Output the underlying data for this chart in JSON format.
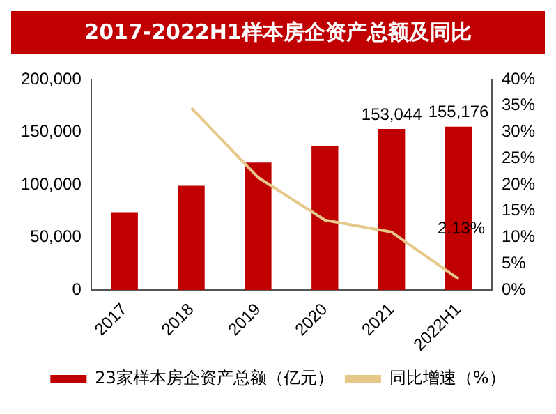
{
  "chart_data": {
    "type": "bar",
    "title": "2017-2022H1样本房企资产总额及同比",
    "categories": [
      "2017",
      "2018",
      "2019",
      "2020",
      "2021",
      "2022H1"
    ],
    "series": [
      {
        "name": "23家样本房企资产总额（亿元）",
        "color": "#c00000",
        "values": [
          74000,
          99000,
          121000,
          137000,
          153044,
          155176
        ],
        "value_labels": [
          null,
          null,
          null,
          null,
          "153,044",
          "155,176"
        ]
      },
      {
        "name": "同比增速（%）",
        "type": "line",
        "axis": "y2",
        "color": "#e6c98a",
        "values": [
          null,
          34.6,
          21.4,
          13.3,
          11.0,
          2.13
        ],
        "value_labels": [
          null,
          null,
          null,
          null,
          null,
          "2.13%"
        ]
      }
    ],
    "ylim": [
      0,
      200000
    ],
    "yticks": [
      {
        "value": 0,
        "label": "0"
      },
      {
        "value": 50000,
        "label": "50,000"
      },
      {
        "value": 100000,
        "label": "100,000"
      },
      {
        "value": 150000,
        "label": "150,000"
      },
      {
        "value": 200000,
        "label": "200,000"
      }
    ],
    "y2lim": [
      0,
      40
    ],
    "y2ticks": [
      {
        "value": 0,
        "label": "0%"
      },
      {
        "value": 5,
        "label": "5%"
      },
      {
        "value": 10,
        "label": "10%"
      },
      {
        "value": 15,
        "label": "15%"
      },
      {
        "value": 20,
        "label": "20%"
      },
      {
        "value": 25,
        "label": "25%"
      },
      {
        "value": 30,
        "label": "30%"
      },
      {
        "value": 35,
        "label": "35%"
      },
      {
        "value": 40,
        "label": "40%"
      }
    ],
    "grid": false,
    "legend": "bottom",
    "marker": "none"
  }
}
